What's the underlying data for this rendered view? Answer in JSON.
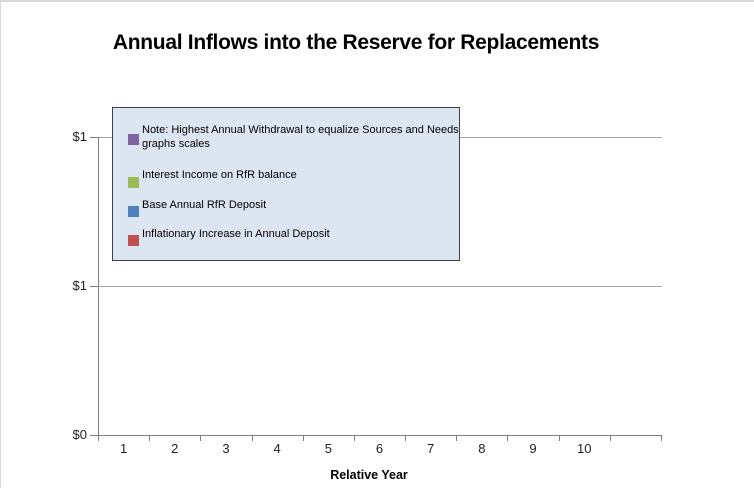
{
  "window": {
    "background": "#ffffff",
    "frame_border_color": "#d9d9d9"
  },
  "chart_data": {
    "type": "bar",
    "title": "Annual Inflows into the Reserve for Replacements",
    "xlabel": "Relative Year",
    "ylabel": "",
    "categories": [
      "1",
      "2",
      "3",
      "4",
      "5",
      "6",
      "7",
      "8",
      "9",
      "10"
    ],
    "series": [
      {
        "name": "Note: Highest Annual Withdrawal to equalize Sources and Needs graphs scales",
        "color": "#8064a2",
        "values": []
      },
      {
        "name": "Interest Income on RfR balance",
        "color": "#9bbb59",
        "values": []
      },
      {
        "name": "Base Annual RfR Deposit",
        "color": "#4f81bd",
        "values": []
      },
      {
        "name": "Inflationary Increase in Annual Deposit",
        "color": "#c0504d",
        "values": []
      }
    ],
    "plot_empty": true,
    "y_axis": {
      "range": [
        0,
        1
      ],
      "major_unit": 0.5,
      "ticks": [
        {
          "value": 1.0,
          "label": "$1"
        },
        {
          "value": 0.5,
          "label": "$1"
        },
        {
          "value": 0.0,
          "label": "$0"
        }
      ]
    },
    "x_axis": {
      "tick_labels": [
        "1",
        "2",
        "3",
        "4",
        "5",
        "6",
        "7",
        "8",
        "9",
        "10"
      ],
      "boundary_tick_count": 12,
      "unlabeled_trailing_intervals": 1
    },
    "legend": {
      "position": "overlay-top-left",
      "background": "#dce6f2",
      "border_color": "#404040"
    },
    "grid": true,
    "gridline_color": "#a6a6a6",
    "axis_line_color": "#7f7f7f"
  }
}
